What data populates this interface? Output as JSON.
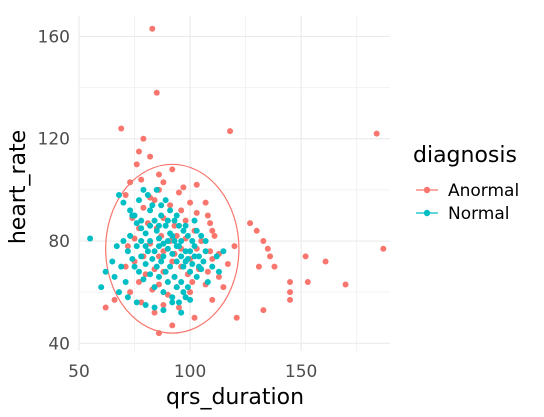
{
  "chart_data": {
    "type": "scatter",
    "xlabel": "qrs_duration",
    "ylabel": "heart_rate",
    "xlim": [
      50,
      190
    ],
    "ylim": [
      37,
      168
    ],
    "xticks": [
      50,
      100,
      150
    ],
    "yticks": [
      40,
      80,
      120,
      160
    ],
    "grid": true,
    "legend": {
      "title": "diagnosis",
      "placement": "right"
    },
    "colors": {
      "Anormal": "#F8766D",
      "Normal": "#00BFC4"
    },
    "series": [
      {
        "name": "Anormal",
        "ellipse": {
          "cx": 92,
          "cy": 77,
          "rx": 30,
          "ry": 33
        },
        "points": [
          [
            83,
            163
          ],
          [
            85,
            138
          ],
          [
            69,
            124
          ],
          [
            79,
            120
          ],
          [
            118,
            123
          ],
          [
            184,
            122
          ],
          [
            77,
            115
          ],
          [
            82,
            113
          ],
          [
            76,
            110
          ],
          [
            92,
            108
          ],
          [
            86,
            106
          ],
          [
            78,
            104
          ],
          [
            73,
            103
          ],
          [
            88,
            103
          ],
          [
            97,
            101
          ],
          [
            86,
            100
          ],
          [
            103,
            102
          ],
          [
            95,
            99
          ],
          [
            82,
            97
          ],
          [
            71,
            98
          ],
          [
            84,
            96
          ],
          [
            100,
            95
          ],
          [
            107,
            95
          ],
          [
            91,
            94
          ],
          [
            79,
            93
          ],
          [
            96,
            92
          ],
          [
            103,
            91
          ],
          [
            108,
            90
          ],
          [
            74,
            89
          ],
          [
            88,
            89
          ],
          [
            98,
            88
          ],
          [
            81,
            87
          ],
          [
            109,
            87
          ],
          [
            93,
            86
          ],
          [
            85,
            85
          ],
          [
            77,
            85
          ],
          [
            102,
            84
          ],
          [
            110,
            84
          ],
          [
            127,
            87
          ],
          [
            130,
            84
          ],
          [
            94,
            82
          ],
          [
            87,
            82
          ],
          [
            111,
            82
          ],
          [
            75,
            81
          ],
          [
            98,
            81
          ],
          [
            91,
            80
          ],
          [
            105,
            80
          ],
          [
            82,
            79
          ],
          [
            120,
            78
          ],
          [
            133,
            80
          ],
          [
            135,
            77
          ],
          [
            187,
            77
          ],
          [
            72,
            78
          ],
          [
            96,
            77
          ],
          [
            103,
            77
          ],
          [
            88,
            76
          ],
          [
            109,
            76
          ],
          [
            93,
            75
          ],
          [
            113,
            75
          ],
          [
            79,
            74
          ],
          [
            86,
            74
          ],
          [
            100,
            73
          ],
          [
            110,
            73
          ],
          [
            136,
            74
          ],
          [
            152,
            74
          ],
          [
            161,
            72
          ],
          [
            75,
            72
          ],
          [
            92,
            72
          ],
          [
            117,
            71
          ],
          [
            131,
            70
          ],
          [
            138,
            70
          ],
          [
            96,
            70
          ],
          [
            71,
            70
          ],
          [
            84,
            69
          ],
          [
            104,
            69
          ],
          [
            88,
            68
          ],
          [
            108,
            68
          ],
          [
            80,
            67
          ],
          [
            99,
            67
          ],
          [
            93,
            66
          ],
          [
            113,
            66
          ],
          [
            145,
            64
          ],
          [
            153,
            64
          ],
          [
            170,
            63
          ],
          [
            101,
            64
          ],
          [
            77,
            64
          ],
          [
            86,
            63
          ],
          [
            107,
            63
          ],
          [
            94,
            62
          ],
          [
            115,
            62
          ],
          [
            145,
            60
          ],
          [
            83,
            61
          ],
          [
            100,
            60
          ],
          [
            73,
            60
          ],
          [
            90,
            59
          ],
          [
            98,
            58
          ],
          [
            110,
            57
          ],
          [
            145,
            57
          ],
          [
            66,
            57
          ],
          [
            78,
            56
          ],
          [
            88,
            55
          ],
          [
            95,
            54
          ],
          [
            62,
            54
          ],
          [
            133,
            53
          ],
          [
            84,
            52
          ],
          [
            121,
            50
          ],
          [
            102,
            50
          ],
          [
            92,
            47
          ],
          [
            86,
            44
          ]
        ]
      },
      {
        "name": "Normal",
        "points": [
          [
            55,
            81
          ],
          [
            62,
            68
          ],
          [
            60,
            62
          ],
          [
            68,
            98
          ],
          [
            70,
            95
          ],
          [
            73,
            92
          ],
          [
            74,
            90
          ],
          [
            76,
            87
          ],
          [
            78,
            85
          ],
          [
            80,
            83
          ],
          [
            82,
            92
          ],
          [
            84,
            88
          ],
          [
            85,
            84
          ],
          [
            86,
            81
          ],
          [
            87,
            94
          ],
          [
            88,
            79
          ],
          [
            89,
            86
          ],
          [
            90,
            77
          ],
          [
            91,
            83
          ],
          [
            92,
            75
          ],
          [
            93,
            80
          ],
          [
            94,
            72
          ],
          [
            95,
            78
          ],
          [
            96,
            74
          ],
          [
            97,
            70
          ],
          [
            98,
            76
          ],
          [
            99,
            73
          ],
          [
            100,
            68
          ],
          [
            101,
            71
          ],
          [
            102,
            78
          ],
          [
            103,
            66
          ],
          [
            104,
            74
          ],
          [
            105,
            69
          ],
          [
            106,
            72
          ],
          [
            107,
            76
          ],
          [
            108,
            64
          ],
          [
            70,
            80
          ],
          [
            72,
            76
          ],
          [
            74,
            73
          ],
          [
            75,
            70
          ],
          [
            76,
            78
          ],
          [
            77,
            68
          ],
          [
            78,
            74
          ],
          [
            79,
            65
          ],
          [
            80,
            71
          ],
          [
            81,
            76
          ],
          [
            82,
            67
          ],
          [
            83,
            73
          ],
          [
            84,
            62
          ],
          [
            85,
            70
          ],
          [
            86,
            66
          ],
          [
            87,
            72
          ],
          [
            88,
            60
          ],
          [
            89,
            68
          ],
          [
            90,
            64
          ],
          [
            91,
            70
          ],
          [
            92,
            58
          ],
          [
            93,
            66
          ],
          [
            94,
            62
          ],
          [
            95,
            56
          ],
          [
            96,
            64
          ],
          [
            97,
            60
          ],
          [
            98,
            58
          ],
          [
            99,
            62
          ],
          [
            100,
            57
          ],
          [
            65,
            72
          ],
          [
            66,
            66
          ],
          [
            67,
            78
          ],
          [
            69,
            70
          ],
          [
            71,
            64
          ],
          [
            73,
            82
          ],
          [
            75,
            90
          ],
          [
            77,
            96
          ],
          [
            79,
            100
          ],
          [
            81,
            98
          ],
          [
            83,
            94
          ],
          [
            85,
            100
          ],
          [
            87,
            90
          ],
          [
            89,
            96
          ],
          [
            91,
            92
          ],
          [
            93,
            88
          ],
          [
            95,
            86
          ],
          [
            97,
            84
          ],
          [
            99,
            82
          ],
          [
            101,
            80
          ],
          [
            103,
            84
          ],
          [
            105,
            82
          ],
          [
            107,
            80
          ],
          [
            110,
            70
          ],
          [
            112,
            74
          ],
          [
            113,
            68
          ],
          [
            115,
            76
          ],
          [
            68,
            60
          ],
          [
            72,
            58
          ],
          [
            76,
            56
          ],
          [
            80,
            55
          ],
          [
            84,
            54
          ],
          [
            88,
            53
          ],
          [
            92,
            56
          ],
          [
            96,
            52
          ],
          [
            78,
            80
          ],
          [
            80,
            78
          ],
          [
            82,
            80
          ],
          [
            84,
            76
          ],
          [
            86,
            78
          ],
          [
            88,
            74
          ],
          [
            90,
            80
          ],
          [
            92,
            82
          ],
          [
            94,
            78
          ],
          [
            96,
            80
          ],
          [
            98,
            72
          ],
          [
            100,
            76
          ],
          [
            102,
            74
          ],
          [
            104,
            70
          ],
          [
            86,
            86
          ],
          [
            90,
            88
          ],
          [
            94,
            90
          ],
          [
            98,
            86
          ],
          [
            102,
            88
          ],
          [
            78,
            88
          ],
          [
            82,
            86
          ]
        ]
      }
    ]
  }
}
